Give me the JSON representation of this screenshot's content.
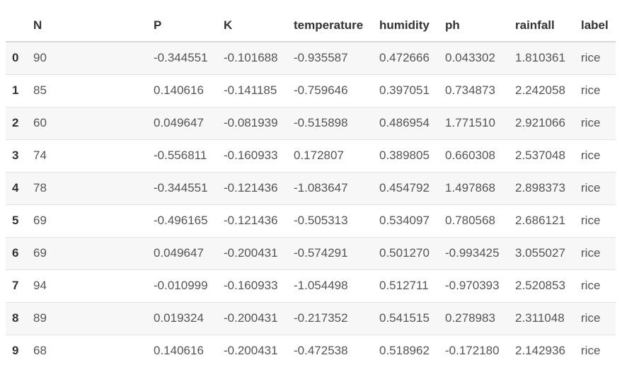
{
  "table": {
    "columns": [
      "",
      "N",
      "P",
      "K",
      "temperature",
      "humidity",
      "ph",
      "rainfall",
      "label"
    ],
    "rows": [
      {
        "index": "0",
        "N": "90",
        "P": "-0.344551",
        "K": "-0.101688",
        "temperature": "-0.935587",
        "humidity": "0.472666",
        "ph": "0.043302",
        "rainfall": "1.810361",
        "label": "rice"
      },
      {
        "index": "1",
        "N": "85",
        "P": "0.140616",
        "K": "-0.141185",
        "temperature": "-0.759646",
        "humidity": "0.397051",
        "ph": "0.734873",
        "rainfall": "2.242058",
        "label": "rice"
      },
      {
        "index": "2",
        "N": "60",
        "P": "0.049647",
        "K": "-0.081939",
        "temperature": "-0.515898",
        "humidity": "0.486954",
        "ph": "1.771510",
        "rainfall": "2.921066",
        "label": "rice"
      },
      {
        "index": "3",
        "N": "74",
        "P": "-0.556811",
        "K": "-0.160933",
        "temperature": "0.172807",
        "humidity": "0.389805",
        "ph": "0.660308",
        "rainfall": "2.537048",
        "label": "rice"
      },
      {
        "index": "4",
        "N": "78",
        "P": "-0.344551",
        "K": "-0.121436",
        "temperature": "-1.083647",
        "humidity": "0.454792",
        "ph": "1.497868",
        "rainfall": "2.898373",
        "label": "rice"
      },
      {
        "index": "5",
        "N": "69",
        "P": "-0.496165",
        "K": "-0.121436",
        "temperature": "-0.505313",
        "humidity": "0.534097",
        "ph": "0.780568",
        "rainfall": "2.686121",
        "label": "rice"
      },
      {
        "index": "6",
        "N": "69",
        "P": "0.049647",
        "K": "-0.200431",
        "temperature": "-0.574291",
        "humidity": "0.501270",
        "ph": "-0.993425",
        "rainfall": "3.055027",
        "label": "rice"
      },
      {
        "index": "7",
        "N": "94",
        "P": "-0.010999",
        "K": "-0.160933",
        "temperature": "-1.054498",
        "humidity": "0.512711",
        "ph": "-0.970393",
        "rainfall": "2.520853",
        "label": "rice"
      },
      {
        "index": "8",
        "N": "89",
        "P": "0.019324",
        "K": "-0.200431",
        "temperature": "-0.217352",
        "humidity": "0.541515",
        "ph": "0.278983",
        "rainfall": "2.311048",
        "label": "rice"
      },
      {
        "index": "9",
        "N": "68",
        "P": "0.140616",
        "K": "-0.200431",
        "temperature": "-0.472538",
        "humidity": "0.518962",
        "ph": "-0.172180",
        "rainfall": "2.142936",
        "label": "rice"
      }
    ]
  }
}
